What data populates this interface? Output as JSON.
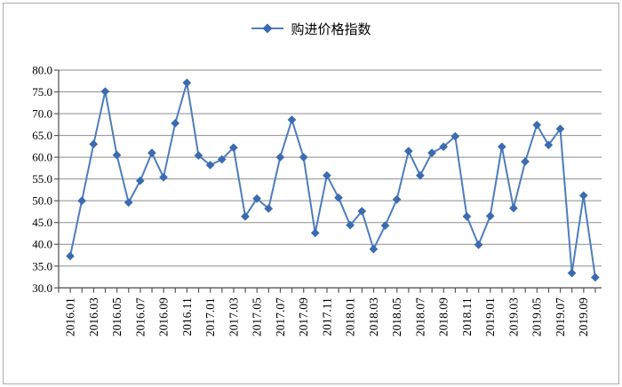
{
  "legend": {
    "label": "购进价格指数",
    "marker_icon": "diamond-marker-icon"
  },
  "colors": {
    "line": "#4e7dbd",
    "marker": "#3b6bb0",
    "gridline": "#8e8e8e",
    "axis": "#595959",
    "text": "#000000",
    "frame_border": "#ababab",
    "background": "#ffffff"
  },
  "chart_data": {
    "type": "line",
    "title": "",
    "legend_entries": [
      "购进价格指数"
    ],
    "legend_position": "top-center",
    "grid": true,
    "marker": "diamond",
    "ylim": [
      30,
      80
    ],
    "y_ticks": [
      30,
      35,
      40,
      45,
      50,
      55,
      60,
      65,
      70,
      75,
      80
    ],
    "y_tick_labels": [
      "30.0",
      "35.0",
      "40.0",
      "45.0",
      "50.0",
      "55.0",
      "60.0",
      "65.0",
      "70.0",
      "75.0",
      "80.0"
    ],
    "x_tick_labels": [
      "2016.01",
      "2016.03",
      "2016.05",
      "2016.07",
      "2016.09",
      "2016.11",
      "2017.01",
      "2017.03",
      "2017.05",
      "2017.07",
      "2017.09",
      "2017.11",
      "2018.01",
      "2018.03",
      "2018.05",
      "2018.07",
      "2018.09",
      "2018.11",
      "2019.01",
      "2019.03",
      "2019.05",
      "2019.07",
      "2019.09"
    ],
    "x_label_every": 2,
    "categories": [
      "2016.01",
      "2016.02",
      "2016.03",
      "2016.04",
      "2016.05",
      "2016.06",
      "2016.07",
      "2016.08",
      "2016.09",
      "2016.10",
      "2016.11",
      "2016.12",
      "2017.01",
      "2017.02",
      "2017.03",
      "2017.04",
      "2017.05",
      "2017.06",
      "2017.07",
      "2017.08",
      "2017.09",
      "2017.10",
      "2017.11",
      "2017.12",
      "2018.01",
      "2018.02",
      "2018.03",
      "2018.04",
      "2018.05",
      "2018.06",
      "2018.07",
      "2018.08",
      "2018.09",
      "2018.10",
      "2018.11",
      "2018.12",
      "2019.01",
      "2019.02",
      "2019.03",
      "2019.04",
      "2019.05",
      "2019.06",
      "2019.07",
      "2019.08",
      "2019.09",
      "2019.10"
    ],
    "series": [
      {
        "name": "购进价格指数",
        "values": [
          37.3,
          50.0,
          63.0,
          75.1,
          60.5,
          49.6,
          54.6,
          61.0,
          55.4,
          67.8,
          77.1,
          60.4,
          58.2,
          59.5,
          62.2,
          46.4,
          50.5,
          48.2,
          60.0,
          68.6,
          60.0,
          42.6,
          55.8,
          50.7,
          44.4,
          47.6,
          38.9,
          44.3,
          50.3,
          61.4,
          55.8,
          61.0,
          62.4,
          64.8,
          46.4,
          39.9,
          46.5,
          62.4,
          48.3,
          59.0,
          67.4,
          62.8,
          66.5,
          33.4,
          51.2,
          32.4
        ]
      }
    ]
  }
}
